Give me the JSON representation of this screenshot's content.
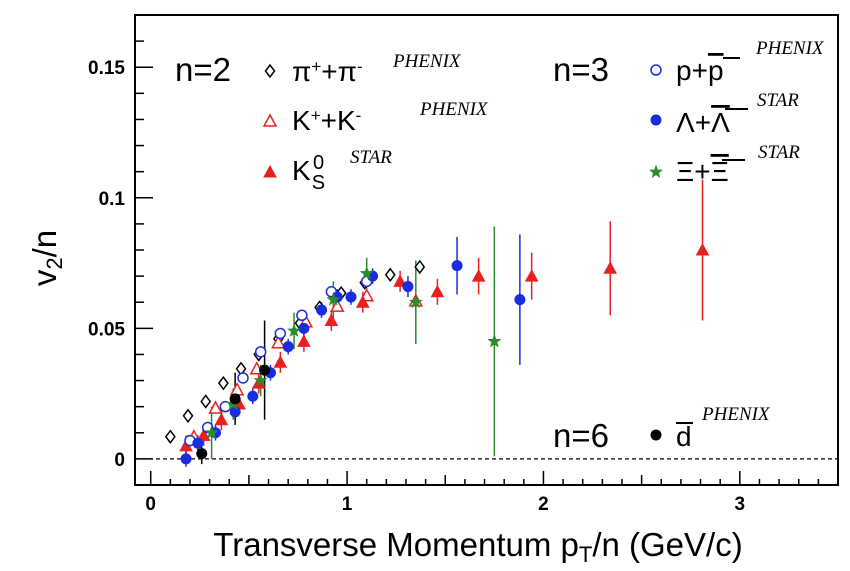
{
  "chart_data": {
    "type": "scatter",
    "title": "",
    "xlabel": "Transverse Momentum p",
    "xlabel_sub": "T",
    "xlabel_rest": "/n (GeV/c)",
    "ylabel": "v",
    "ylabel_sub": "2",
    "ylabel_rest": "/n",
    "xlim": [
      -0.08,
      3.5
    ],
    "ylim": [
      -0.01,
      0.17
    ],
    "x_ticks": [
      0,
      1,
      2,
      3
    ],
    "x_tick_labels": [
      "0",
      "1",
      "2",
      "3"
    ],
    "y_ticks": [
      0,
      0.05,
      0.1,
      0.15
    ],
    "y_tick_labels": [
      "0",
      "0.05",
      "0.1",
      "0.15"
    ],
    "zero_line": true,
    "grid": false,
    "groups": [
      {
        "label": "n=2",
        "entries": [
          0,
          1,
          2
        ]
      },
      {
        "label": "n=3",
        "entries": [
          3,
          4,
          5
        ]
      },
      {
        "label": "n=6",
        "entries": [
          6
        ]
      }
    ],
    "series": [
      {
        "name": "π⁺+π⁻",
        "name_parts": [
          "π",
          "+",
          "+π",
          "-"
        ],
        "experiment": "PHENIX",
        "marker": "diamond-open",
        "color": "#000000",
        "points": [
          {
            "x": 0.1,
            "y": 0.0085
          },
          {
            "x": 0.19,
            "y": 0.0165
          },
          {
            "x": 0.28,
            "y": 0.022
          },
          {
            "x": 0.37,
            "y": 0.029
          },
          {
            "x": 0.46,
            "y": 0.0345
          },
          {
            "x": 0.55,
            "y": 0.04
          },
          {
            "x": 0.65,
            "y": 0.046
          },
          {
            "x": 0.76,
            "y": 0.052
          },
          {
            "x": 0.86,
            "y": 0.058
          },
          {
            "x": 0.97,
            "y": 0.0635
          },
          {
            "x": 1.09,
            "y": 0.0675
          },
          {
            "x": 1.22,
            "y": 0.0705
          },
          {
            "x": 1.37,
            "y": 0.0735
          }
        ]
      },
      {
        "name": "K⁺+K⁻",
        "name_parts": [
          "K",
          "+",
          "+K",
          "-"
        ],
        "experiment": "PHENIX",
        "marker": "triangle-open",
        "color": "#e8211f",
        "points": [
          {
            "x": 0.22,
            "y": 0.0085
          },
          {
            "x": 0.33,
            "y": 0.0195
          },
          {
            "x": 0.44,
            "y": 0.0265
          },
          {
            "x": 0.54,
            "y": 0.0345
          },
          {
            "x": 0.65,
            "y": 0.0445
          },
          {
            "x": 0.79,
            "y": 0.0525
          },
          {
            "x": 0.95,
            "y": 0.0585
          },
          {
            "x": 1.1,
            "y": 0.0625
          },
          {
            "x": 1.35,
            "y": 0.0605
          }
        ]
      },
      {
        "name": "K_S^0",
        "name_parts": [
          "K",
          "S",
          "0"
        ],
        "experiment": "STAR",
        "marker": "triangle-filled",
        "color": "#e8211f",
        "points": [
          {
            "x": 0.18,
            "y": 0.005,
            "err": 0.004
          },
          {
            "x": 0.27,
            "y": 0.009,
            "err": 0.004
          },
          {
            "x": 0.36,
            "y": 0.015,
            "err": 0.004
          },
          {
            "x": 0.45,
            "y": 0.021,
            "err": 0.004
          },
          {
            "x": 0.55,
            "y": 0.029,
            "err": 0.004
          },
          {
            "x": 0.66,
            "y": 0.037,
            "err": 0.004
          },
          {
            "x": 0.78,
            "y": 0.045,
            "err": 0.004
          },
          {
            "x": 0.92,
            "y": 0.053,
            "err": 0.004
          },
          {
            "x": 1.08,
            "y": 0.06,
            "err": 0.004
          },
          {
            "x": 1.27,
            "y": 0.068,
            "err": 0.004
          },
          {
            "x": 1.46,
            "y": 0.064,
            "err": 0.005
          },
          {
            "x": 1.67,
            "y": 0.07,
            "err": 0.007
          },
          {
            "x": 1.94,
            "y": 0.07,
            "err": 0.009
          },
          {
            "x": 2.34,
            "y": 0.073,
            "err": 0.018
          },
          {
            "x": 2.81,
            "y": 0.08,
            "err": 0.027
          }
        ]
      },
      {
        "name": "p+p̄",
        "name_parts": [
          "p+",
          "p"
        ],
        "experiment": "PHENIX",
        "marker": "circle-open",
        "color": "#1a2be0",
        "points": [
          {
            "x": 0.2,
            "y": 0.007
          },
          {
            "x": 0.29,
            "y": 0.012
          },
          {
            "x": 0.38,
            "y": 0.02
          },
          {
            "x": 0.47,
            "y": 0.031
          },
          {
            "x": 0.56,
            "y": 0.041
          },
          {
            "x": 0.66,
            "y": 0.048
          },
          {
            "x": 0.77,
            "y": 0.055
          },
          {
            "x": 0.92,
            "y": 0.064
          },
          {
            "x": 1.1,
            "y": 0.068
          }
        ]
      },
      {
        "name": "Λ+Λ̄",
        "name_parts": [
          "Λ+",
          "Λ"
        ],
        "experiment": "STAR",
        "marker": "circle-filled",
        "color": "#1a2be0",
        "points": [
          {
            "x": 0.18,
            "y": 0.0,
            "err": 0.003
          },
          {
            "x": 0.24,
            "y": 0.006,
            "err": 0.003
          },
          {
            "x": 0.33,
            "y": 0.01,
            "err": 0.003
          },
          {
            "x": 0.43,
            "y": 0.018,
            "err": 0.003
          },
          {
            "x": 0.52,
            "y": 0.024,
            "err": 0.003
          },
          {
            "x": 0.61,
            "y": 0.033,
            "err": 0.003
          },
          {
            "x": 0.7,
            "y": 0.043,
            "err": 0.003
          },
          {
            "x": 0.78,
            "y": 0.05,
            "err": 0.003
          },
          {
            "x": 0.87,
            "y": 0.057,
            "err": 0.003
          },
          {
            "x": 0.95,
            "y": 0.062,
            "err": 0.003
          },
          {
            "x": 1.02,
            "y": 0.062,
            "err": 0.003
          },
          {
            "x": 1.13,
            "y": 0.07,
            "err": 0.003
          },
          {
            "x": 1.31,
            "y": 0.066,
            "err": 0.004
          },
          {
            "x": 1.56,
            "y": 0.074,
            "err": 0.011
          },
          {
            "x": 1.88,
            "y": 0.061,
            "err": 0.025
          }
        ]
      },
      {
        "name": "Ξ+Ξ̄",
        "name_parts": [
          "Ξ+",
          "Ξ"
        ],
        "experiment": "STAR",
        "marker": "star",
        "color": "#2a8c2a",
        "points": [
          {
            "x": 0.31,
            "y": 0.01,
            "err": 0.01
          },
          {
            "x": 0.42,
            "y": 0.021,
            "err": 0.006
          },
          {
            "x": 0.56,
            "y": 0.03,
            "err": 0.006
          },
          {
            "x": 0.73,
            "y": 0.049,
            "err": 0.007
          },
          {
            "x": 0.93,
            "y": 0.061,
            "err": 0.007
          },
          {
            "x": 1.1,
            "y": 0.071,
            "err": 0.006
          },
          {
            "x": 1.35,
            "y": 0.06,
            "err": 0.016
          },
          {
            "x": 1.75,
            "y": 0.045,
            "err": 0.044
          }
        ]
      },
      {
        "name": "d̄",
        "name_parts": [
          "d"
        ],
        "experiment": "PHENIX",
        "marker": "circle-filled",
        "color": "#000000",
        "points": [
          {
            "x": 0.26,
            "y": 0.002,
            "err": 0.004
          },
          {
            "x": 0.43,
            "y": 0.023,
            "err": 0.01
          },
          {
            "x": 0.58,
            "y": 0.034,
            "err": 0.019
          }
        ]
      }
    ]
  }
}
